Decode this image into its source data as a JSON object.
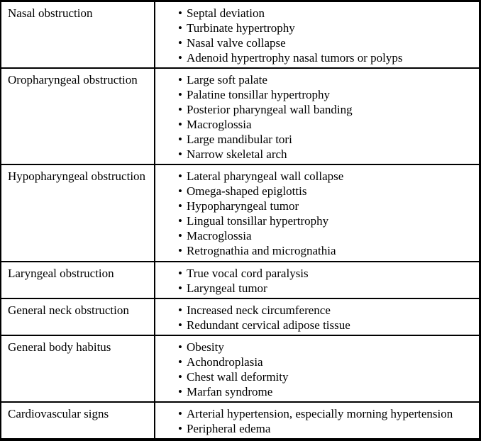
{
  "colors": {
    "border": "#000000",
    "background": "#ffffff",
    "text": "#000000"
  },
  "table": {
    "bullet": "•",
    "rows": [
      {
        "category": "Nasal obstruction",
        "items": [
          "Septal deviation",
          "Turbinate hypertrophy",
          "Nasal valve collapse",
          "Adenoid hypertrophy nasal tumors or polyps"
        ]
      },
      {
        "category": "Oropharyngeal obstruction",
        "items": [
          "Large soft palate",
          "Palatine tonsillar hypertrophy",
          "Posterior pharyngeal wall banding",
          "Macroglossia",
          "Large mandibular tori",
          "Narrow skeletal arch"
        ]
      },
      {
        "category": "Hypopharyngeal obstruction",
        "items": [
          "Lateral pharyngeal wall collapse",
          "Omega-shaped epiglottis",
          "Hypopharyngeal tumor",
          "Lingual tonsillar hypertrophy",
          "Macroglossia",
          "Retrognathia and micrognathia"
        ]
      },
      {
        "category": "Laryngeal obstruction",
        "items": [
          "True vocal cord paralysis",
          "Laryngeal tumor"
        ]
      },
      {
        "category": "General neck obstruction",
        "items": [
          "Increased neck circumference",
          "Redundant cervical adipose tissue"
        ]
      },
      {
        "category": "General body habitus",
        "items": [
          "Obesity",
          "Achondroplasia",
          "Chest wall deformity",
          "Marfan syndrome"
        ]
      },
      {
        "category": "Cardiovascular signs",
        "items": [
          "Arterial hypertension, especially morning hypertension",
          "Peripheral edema"
        ]
      }
    ]
  }
}
